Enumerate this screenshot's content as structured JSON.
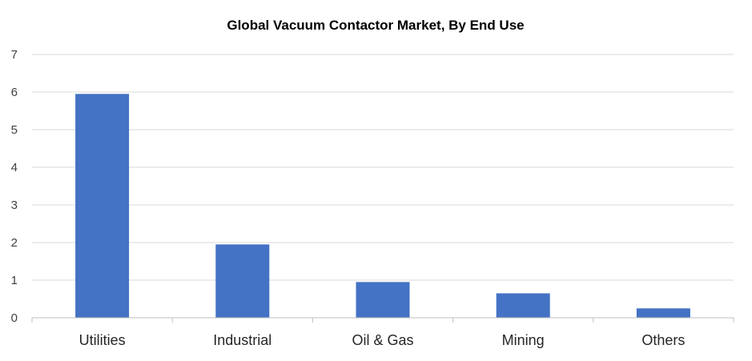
{
  "chart_data": {
    "type": "bar",
    "title": "Global Vacuum Contactor Market, By End Use",
    "xlabel": "",
    "ylabel": "",
    "categories": [
      "Utilities",
      "Industrial",
      "Oil & Gas",
      "Mining",
      "Others"
    ],
    "values": [
      5.95,
      1.95,
      0.95,
      0.65,
      0.25
    ],
    "ylim": [
      0,
      7
    ],
    "yticks": [
      "0",
      "1",
      "2",
      "3",
      "4",
      "5",
      "6",
      "7"
    ],
    "grid": true,
    "legend": "none",
    "bar_color": "#4472c4"
  }
}
